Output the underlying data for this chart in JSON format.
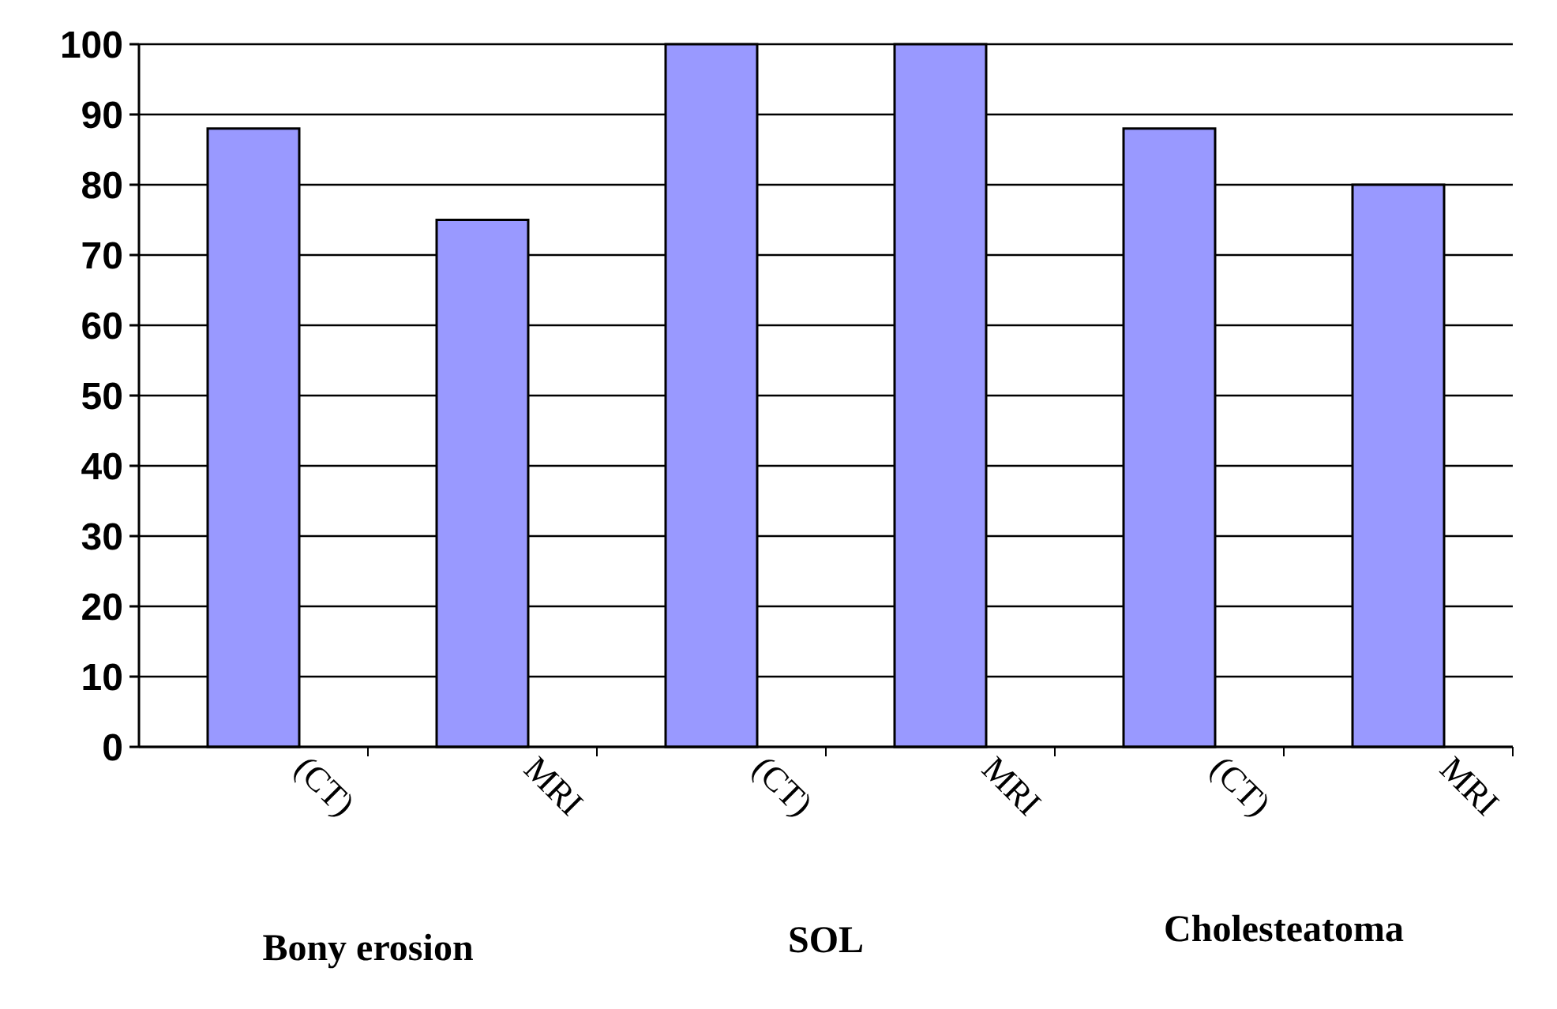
{
  "chart_data": {
    "type": "bar",
    "categories": [
      "(CT)",
      "MRI",
      "(CT)",
      "MRI",
      "(CT)",
      "MRI"
    ],
    "values": [
      88,
      75,
      100,
      100,
      88,
      80
    ],
    "color": "#9999ff",
    "ylim": [
      0,
      100
    ],
    "yticks": [
      0,
      10,
      20,
      30,
      40,
      50,
      60,
      70,
      80,
      90,
      100
    ],
    "grid": "y",
    "annotations": [
      "Bony erosion",
      "SOL",
      "Cholesteatoma"
    ]
  }
}
